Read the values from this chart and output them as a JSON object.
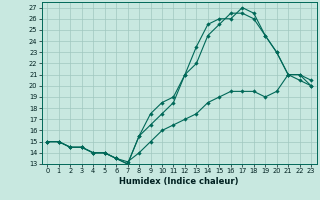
{
  "xlabel": "Humidex (Indice chaleur)",
  "xlim": [
    -0.5,
    23.5
  ],
  "ylim": [
    13,
    27.5
  ],
  "background_color": "#c8e8e0",
  "grid_color": "#a0c8c0",
  "line_color": "#006858",
  "line1_x": [
    0,
    1,
    2,
    3,
    4,
    5,
    6,
    7,
    8,
    9,
    10,
    11,
    12,
    13,
    14,
    15,
    16,
    17,
    18,
    19,
    20,
    21,
    22,
    23
  ],
  "line1_y": [
    15,
    15,
    14.5,
    14.5,
    14,
    14,
    13.5,
    13,
    15.5,
    16.5,
    17.5,
    18.5,
    21,
    23.5,
    25.5,
    26,
    26,
    27,
    26.5,
    24.5,
    23,
    21,
    21,
    20
  ],
  "line2_x": [
    0,
    1,
    2,
    3,
    4,
    5,
    6,
    7,
    8,
    9,
    10,
    11,
    12,
    13,
    14,
    15,
    16,
    17,
    18,
    19,
    20,
    21,
    22,
    23
  ],
  "line2_y": [
    15,
    15,
    14.5,
    14.5,
    14,
    14,
    13.5,
    13,
    15.5,
    17.5,
    18.5,
    19,
    21,
    22,
    24.5,
    25.5,
    26.5,
    26.5,
    26,
    24.5,
    23,
    21,
    21,
    20.5
  ],
  "line3_x": [
    0,
    1,
    2,
    3,
    4,
    5,
    6,
    7,
    8,
    9,
    10,
    11,
    12,
    13,
    14,
    15,
    16,
    17,
    18,
    19,
    20,
    21,
    22,
    23
  ],
  "line3_y": [
    15,
    15,
    14.5,
    14.5,
    14,
    14,
    13.5,
    13.2,
    14,
    15,
    16,
    16.5,
    17,
    17.5,
    18.5,
    19,
    19.5,
    19.5,
    19.5,
    19,
    19.5,
    21,
    20.5,
    20
  ],
  "yticks": [
    13,
    14,
    15,
    16,
    17,
    18,
    19,
    20,
    21,
    22,
    23,
    24,
    25,
    26,
    27
  ],
  "xticks": [
    0,
    1,
    2,
    3,
    4,
    5,
    6,
    7,
    8,
    9,
    10,
    11,
    12,
    13,
    14,
    15,
    16,
    17,
    18,
    19,
    20,
    21,
    22,
    23
  ]
}
